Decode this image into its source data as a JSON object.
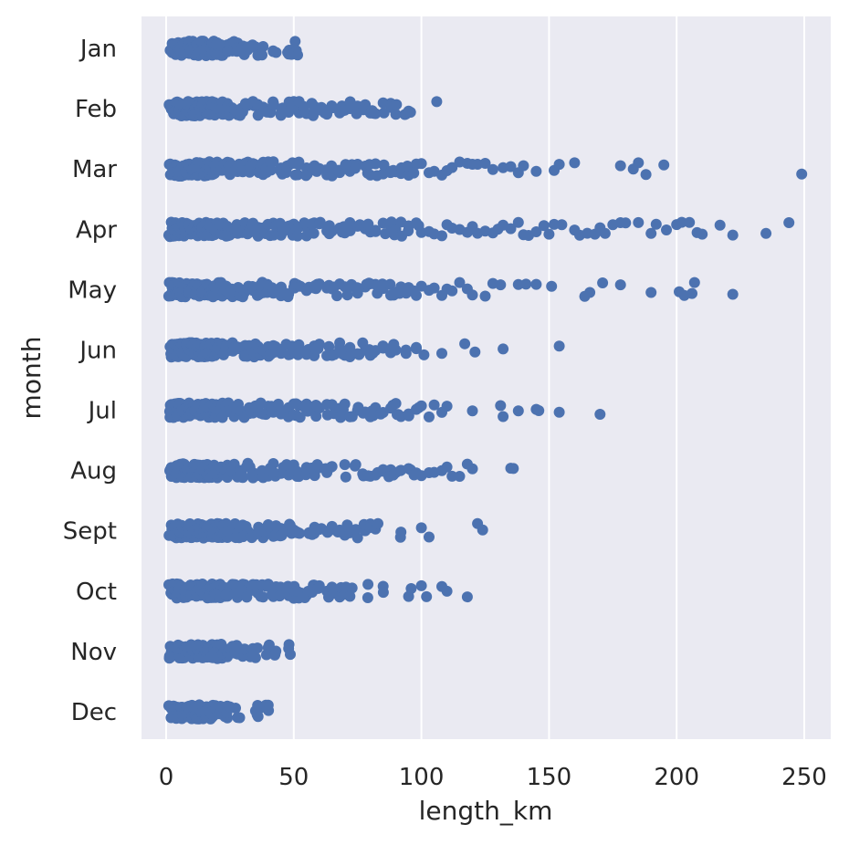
{
  "chart_data": {
    "type": "scatter",
    "xlabel": "length_km",
    "ylabel": "month",
    "xlim": [
      -10,
      262
    ],
    "xticks": [
      0,
      50,
      100,
      150,
      200,
      250
    ],
    "categories": [
      "Jan",
      "Feb",
      "Mar",
      "Apr",
      "May",
      "Jun",
      "Jul",
      "Aug",
      "Sept",
      "Oct",
      "Nov",
      "Dec"
    ],
    "grid": true,
    "style": {
      "background": "#eaeaf2",
      "grid_color": "#ffffff",
      "marker_color": "#4c72b0"
    },
    "series": [
      {
        "category": "Jan",
        "x": [
          2,
          3,
          4,
          5,
          6,
          7,
          8,
          9,
          10,
          11,
          12,
          13,
          14,
          15,
          16,
          17,
          18,
          19,
          20,
          22,
          24,
          26,
          28,
          30,
          31,
          33,
          35,
          38,
          42,
          48,
          50,
          51
        ]
      },
      {
        "category": "Feb",
        "x": [
          2,
          3,
          4,
          5,
          6,
          7,
          8,
          9,
          10,
          11,
          12,
          13,
          14,
          15,
          16,
          17,
          18,
          19,
          20,
          22,
          24,
          26,
          28,
          30,
          32,
          34,
          36,
          38,
          40,
          42,
          45,
          48,
          50,
          52,
          55,
          58,
          60,
          63,
          65,
          68,
          70,
          72,
          75,
          78,
          80,
          82,
          85,
          88,
          90,
          94,
          95,
          106
        ]
      },
      {
        "category": "Mar",
        "x": [
          2,
          3,
          4,
          5,
          6,
          7,
          8,
          9,
          10,
          11,
          12,
          13,
          14,
          15,
          16,
          17,
          18,
          19,
          20,
          22,
          24,
          26,
          28,
          30,
          32,
          34,
          36,
          38,
          40,
          42,
          45,
          48,
          50,
          52,
          55,
          58,
          60,
          63,
          65,
          68,
          70,
          72,
          75,
          78,
          80,
          82,
          85,
          88,
          90,
          92,
          95,
          98,
          100,
          103,
          105,
          108,
          110,
          112,
          115,
          118,
          120,
          122,
          125,
          128,
          132,
          135,
          138,
          140,
          145,
          152,
          154,
          160,
          178,
          183,
          185,
          188,
          195,
          249
        ]
      },
      {
        "category": "Apr",
        "x": [
          2,
          3,
          4,
          5,
          6,
          7,
          8,
          9,
          10,
          11,
          12,
          13,
          14,
          15,
          16,
          17,
          18,
          19,
          20,
          22,
          24,
          26,
          28,
          30,
          32,
          34,
          36,
          38,
          40,
          42,
          45,
          48,
          50,
          52,
          55,
          58,
          60,
          63,
          65,
          68,
          70,
          72,
          75,
          78,
          80,
          82,
          85,
          88,
          90,
          92,
          95,
          98,
          100,
          103,
          105,
          108,
          110,
          112,
          115,
          118,
          120,
          122,
          125,
          128,
          130,
          132,
          135,
          138,
          140,
          142,
          145,
          148,
          150,
          152,
          155,
          160,
          162,
          165,
          168,
          170,
          172,
          175,
          178,
          180,
          185,
          190,
          192,
          196,
          200,
          202,
          205,
          208,
          210,
          217,
          222,
          235,
          244
        ]
      },
      {
        "category": "May",
        "x": [
          2,
          3,
          4,
          5,
          6,
          7,
          8,
          9,
          10,
          11,
          12,
          13,
          14,
          15,
          16,
          17,
          18,
          19,
          20,
          22,
          24,
          26,
          28,
          30,
          32,
          34,
          36,
          38,
          40,
          42,
          45,
          48,
          50,
          52,
          55,
          58,
          60,
          63,
          65,
          68,
          70,
          72,
          75,
          78,
          80,
          82,
          85,
          88,
          90,
          92,
          95,
          98,
          100,
          103,
          105,
          108,
          110,
          112,
          115,
          118,
          120,
          125,
          128,
          131,
          138,
          141,
          145,
          151,
          164,
          166,
          171,
          178,
          190,
          201,
          203,
          206,
          207,
          222
        ]
      },
      {
        "category": "Jun",
        "x": [
          2,
          3,
          4,
          5,
          6,
          7,
          8,
          9,
          10,
          11,
          12,
          13,
          14,
          15,
          16,
          17,
          18,
          19,
          20,
          22,
          24,
          26,
          28,
          30,
          32,
          34,
          36,
          38,
          40,
          42,
          45,
          48,
          50,
          52,
          55,
          58,
          60,
          63,
          65,
          68,
          70,
          72,
          75,
          78,
          80,
          82,
          85,
          88,
          90,
          94,
          98,
          101,
          108,
          117,
          121,
          132,
          154
        ]
      },
      {
        "category": "Jul",
        "x": [
          2,
          3,
          4,
          5,
          6,
          7,
          8,
          9,
          10,
          11,
          12,
          13,
          14,
          15,
          16,
          17,
          18,
          19,
          20,
          22,
          24,
          26,
          28,
          30,
          32,
          34,
          36,
          38,
          40,
          42,
          45,
          48,
          50,
          52,
          55,
          58,
          60,
          63,
          65,
          68,
          70,
          72,
          75,
          78,
          80,
          82,
          85,
          88,
          90,
          92,
          95,
          98,
          100,
          103,
          105,
          108,
          110,
          120,
          131,
          132,
          138,
          145,
          146,
          154,
          170
        ]
      },
      {
        "category": "Aug",
        "x": [
          2,
          3,
          4,
          5,
          6,
          7,
          8,
          9,
          10,
          11,
          12,
          13,
          14,
          15,
          16,
          17,
          18,
          19,
          20,
          22,
          24,
          26,
          28,
          30,
          32,
          34,
          36,
          38,
          40,
          42,
          45,
          48,
          50,
          52,
          55,
          58,
          60,
          63,
          65,
          70,
          74,
          77,
          80,
          82,
          85,
          88,
          90,
          92,
          95,
          98,
          100,
          103,
          105,
          108,
          110,
          112,
          115,
          118,
          120,
          135,
          136
        ]
      },
      {
        "category": "Sept",
        "x": [
          2,
          3,
          4,
          5,
          6,
          7,
          8,
          9,
          10,
          11,
          12,
          13,
          14,
          15,
          16,
          17,
          18,
          19,
          20,
          22,
          24,
          26,
          28,
          30,
          32,
          34,
          36,
          38,
          40,
          42,
          45,
          48,
          50,
          52,
          56,
          58,
          60,
          63,
          65,
          68,
          70,
          72,
          75,
          78,
          80,
          82,
          92,
          100,
          103,
          122,
          124
        ]
      },
      {
        "category": "Oct",
        "x": [
          2,
          3,
          4,
          5,
          6,
          7,
          8,
          9,
          10,
          11,
          12,
          13,
          14,
          15,
          16,
          17,
          18,
          19,
          20,
          22,
          24,
          26,
          28,
          30,
          32,
          34,
          36,
          38,
          40,
          42,
          45,
          48,
          50,
          52,
          55,
          58,
          60,
          63,
          65,
          68,
          70,
          72,
          79,
          85,
          95,
          100,
          102,
          108,
          110,
          118
        ]
      },
      {
        "category": "Nov",
        "x": [
          2,
          5,
          6,
          7,
          8,
          9,
          10,
          11,
          12,
          13,
          14,
          15,
          16,
          17,
          18,
          19,
          20,
          22,
          24,
          26,
          28,
          30,
          33,
          35,
          40,
          43,
          48
        ]
      },
      {
        "category": "Dec",
        "x": [
          2,
          4,
          5,
          6,
          7,
          8,
          9,
          10,
          11,
          12,
          13,
          14,
          15,
          16,
          17,
          18,
          19,
          20,
          22,
          24,
          28,
          35,
          36,
          40
        ]
      }
    ]
  }
}
